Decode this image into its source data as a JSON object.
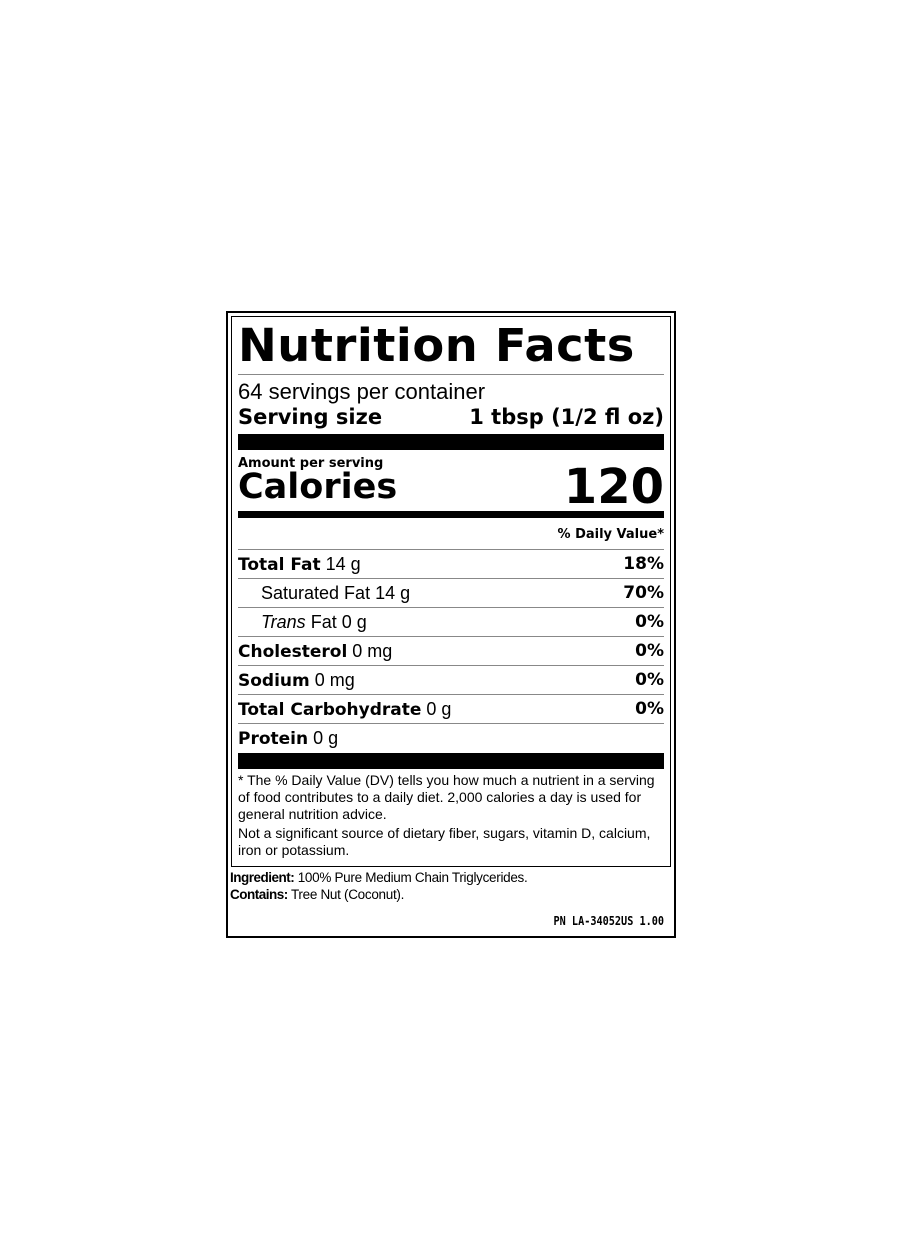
{
  "title": "Nutrition Facts",
  "servings_per_container": "64 servings per container",
  "serving_size": {
    "label": "Serving size",
    "value": "1 tbsp (1/2 fl oz)"
  },
  "amount_per_serving": "Amount per serving",
  "calories": {
    "label": "Calories",
    "value": "120"
  },
  "daily_value_header": "% Daily Value*",
  "nutrients": [
    {
      "name": "Total Fat",
      "amount": "14 g",
      "dv": "18%",
      "bold": true
    },
    {
      "name": "Saturated Fat",
      "amount": "14 g",
      "dv": "70%",
      "bold": false
    },
    {
      "name": "Trans",
      "name_suffix": "Fat",
      "amount": "0 g",
      "dv": "0%",
      "bold": false
    },
    {
      "name": "Cholesterol",
      "amount": "0 mg",
      "dv": "0%",
      "bold": true
    },
    {
      "name": "Sodium",
      "amount": "0 mg",
      "dv": "0%",
      "bold": true
    },
    {
      "name": "Total Carbohydrate",
      "amount": "0 g",
      "dv": "0%",
      "bold": true
    },
    {
      "name": "Protein",
      "amount": "0 g",
      "bold": true
    }
  ],
  "footnote": "* The % Daily Value (DV) tells you how much a nutrient in a serving of food contributes to a daily diet. 2,000 calories a day is used for general nutrition advice.",
  "not_significant": "Not a significant source of dietary fiber, sugars, vitamin D, calcium, iron or potassium.",
  "ingredient": {
    "label": "Ingredient:",
    "value": "100% Pure Medium Chain Triglycerides."
  },
  "contains": {
    "label": "Contains:",
    "value": "Tree Nut (Coconut)."
  },
  "part_number": "PN LA-34052US 1.00"
}
